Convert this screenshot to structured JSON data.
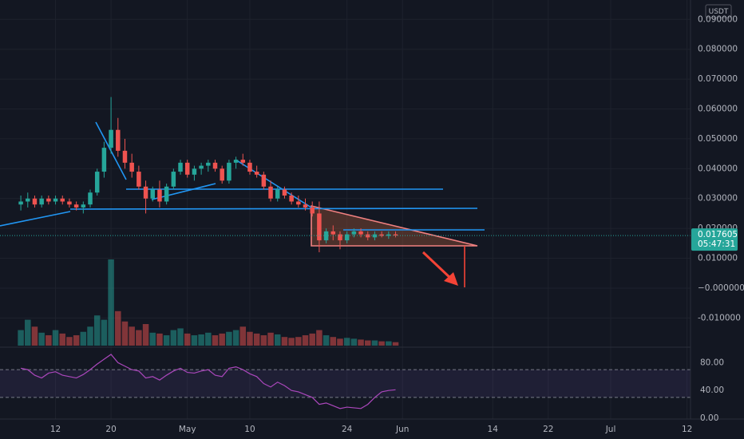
{
  "chart_data": {
    "type": "candlestick",
    "currency": "USDT",
    "last_price": 0.017605,
    "countdown": "05:47:31",
    "ylim": [
      -0.0198,
      0.0965
    ],
    "yticks": [
      {
        "value": 0.09,
        "label": "0.090000"
      },
      {
        "value": 0.08,
        "label": "0.080000"
      },
      {
        "value": 0.07,
        "label": "0.070000"
      },
      {
        "value": 0.06,
        "label": "0.060000"
      },
      {
        "value": 0.05,
        "label": "0.050000"
      },
      {
        "value": 0.04,
        "label": "0.040000"
      },
      {
        "value": 0.03,
        "label": "0.030000"
      },
      {
        "value": 0.02,
        "label": "0.020000"
      },
      {
        "value": 0.01,
        "label": "0.010000"
      },
      {
        "value": 0,
        "label": "−0.000000"
      },
      {
        "value": -0.01,
        "label": "-0.010000"
      }
    ],
    "xlim": [
      0,
      99.5
    ],
    "xticks": [
      {
        "value": 8,
        "label": "12"
      },
      {
        "value": 16,
        "label": "20"
      },
      {
        "value": 27,
        "label": "May"
      },
      {
        "value": 36,
        "label": "10"
      },
      {
        "value": 50,
        "label": "24"
      },
      {
        "value": 58,
        "label": "Jun"
      },
      {
        "value": 71,
        "label": "14"
      },
      {
        "value": 79,
        "label": "22"
      },
      {
        "value": 88,
        "label": "Jul"
      },
      {
        "value": 99,
        "label": "12"
      }
    ],
    "x": [
      3,
      4,
      5,
      6,
      7,
      8,
      9,
      10,
      11,
      12,
      13,
      14,
      15,
      16,
      17,
      18,
      19,
      20,
      21,
      22,
      23,
      24,
      25,
      26,
      27,
      28,
      29,
      30,
      31,
      32,
      33,
      34,
      35,
      36,
      37,
      38,
      39,
      40,
      41,
      42,
      43,
      44,
      45,
      46,
      47,
      48,
      49,
      50,
      51,
      52,
      53,
      54,
      55,
      56,
      57
    ],
    "up_color": "#26a69a",
    "down_color": "#ef5350",
    "open": [
      0.028,
      0.029,
      0.03,
      0.028,
      0.03,
      0.029,
      0.03,
      0.029,
      0.028,
      0.027,
      0.028,
      0.032,
      0.039,
      0.047,
      0.053,
      0.046,
      0.042,
      0.039,
      0.034,
      0.03,
      0.033,
      0.029,
      0.034,
      0.039,
      0.042,
      0.038,
      0.04,
      0.041,
      0.042,
      0.04,
      0.036,
      0.042,
      0.043,
      0.042,
      0.039,
      0.038,
      0.034,
      0.03,
      0.033,
      0.031,
      0.029,
      0.028,
      0.027,
      0.025,
      0.016,
      0.019,
      0.018,
      0.016,
      0.018,
      0.019,
      0.018,
      0.017,
      0.018,
      0.0175,
      0.018
    ],
    "high": [
      0.031,
      0.032,
      0.031,
      0.031,
      0.031,
      0.031,
      0.031,
      0.03,
      0.029,
      0.029,
      0.033,
      0.04,
      0.049,
      0.064,
      0.057,
      0.05,
      0.045,
      0.041,
      0.036,
      0.034,
      0.036,
      0.035,
      0.04,
      0.043,
      0.043,
      0.041,
      0.042,
      0.043,
      0.043,
      0.041,
      0.043,
      0.044,
      0.045,
      0.043,
      0.041,
      0.039,
      0.036,
      0.034,
      0.034,
      0.032,
      0.031,
      0.03,
      0.029,
      0.029,
      0.02,
      0.021,
      0.019,
      0.019,
      0.02,
      0.02,
      0.019,
      0.019,
      0.019,
      0.019,
      0.019
    ],
    "low": [
      0.026,
      0.027,
      0.027,
      0.027,
      0.028,
      0.028,
      0.028,
      0.027,
      0.026,
      0.025,
      0.027,
      0.031,
      0.037,
      0.045,
      0.044,
      0.04,
      0.037,
      0.033,
      0.025,
      0.029,
      0.027,
      0.028,
      0.033,
      0.038,
      0.037,
      0.036,
      0.038,
      0.039,
      0.039,
      0.035,
      0.035,
      0.04,
      0.041,
      0.038,
      0.037,
      0.033,
      0.029,
      0.029,
      0.03,
      0.028,
      0.027,
      0.026,
      0.024,
      0.012,
      0.015,
      0.016,
      0.013,
      0.015,
      0.017,
      0.017,
      0.016,
      0.016,
      0.017,
      0.0165,
      0.017
    ],
    "close": [
      0.029,
      0.03,
      0.028,
      0.03,
      0.029,
      0.03,
      0.029,
      0.028,
      0.027,
      0.028,
      0.032,
      0.039,
      0.047,
      0.053,
      0.046,
      0.042,
      0.039,
      0.034,
      0.03,
      0.033,
      0.029,
      0.034,
      0.039,
      0.042,
      0.038,
      0.04,
      0.041,
      0.042,
      0.04,
      0.036,
      0.042,
      0.043,
      0.042,
      0.039,
      0.038,
      0.034,
      0.03,
      0.033,
      0.031,
      0.029,
      0.028,
      0.027,
      0.025,
      0.016,
      0.019,
      0.018,
      0.016,
      0.018,
      0.019,
      0.018,
      0.017,
      0.018,
      0.0175,
      0.018,
      0.017605
    ],
    "volume": [
      18,
      30,
      22,
      15,
      12,
      18,
      14,
      10,
      12,
      16,
      22,
      35,
      30,
      100,
      40,
      28,
      22,
      18,
      25,
      15,
      14,
      12,
      18,
      20,
      14,
      12,
      13,
      15,
      12,
      14,
      16,
      18,
      22,
      16,
      14,
      12,
      15,
      13,
      10,
      9,
      10,
      12,
      14,
      18,
      12,
      10,
      8,
      9,
      8,
      7,
      6,
      6,
      5,
      5,
      4
    ],
    "rsi": {
      "color": "#ab47bc",
      "ylim": [
        0,
        100
      ],
      "yticks": [
        {
          "value": 80,
          "label": "80.00"
        },
        {
          "value": 40,
          "label": "40.00"
        },
        {
          "value": 0,
          "label": "0.00"
        }
      ],
      "band": [
        30,
        70
      ],
      "values": [
        72,
        70,
        62,
        58,
        65,
        67,
        62,
        60,
        58,
        63,
        70,
        78,
        85,
        92,
        80,
        75,
        70,
        68,
        58,
        60,
        55,
        62,
        68,
        72,
        66,
        65,
        68,
        70,
        62,
        60,
        72,
        74,
        70,
        64,
        60,
        50,
        45,
        52,
        47,
        40,
        38,
        34,
        30,
        20,
        22,
        18,
        14,
        16,
        15,
        14,
        20,
        30,
        38,
        40,
        41
      ]
    }
  }
}
